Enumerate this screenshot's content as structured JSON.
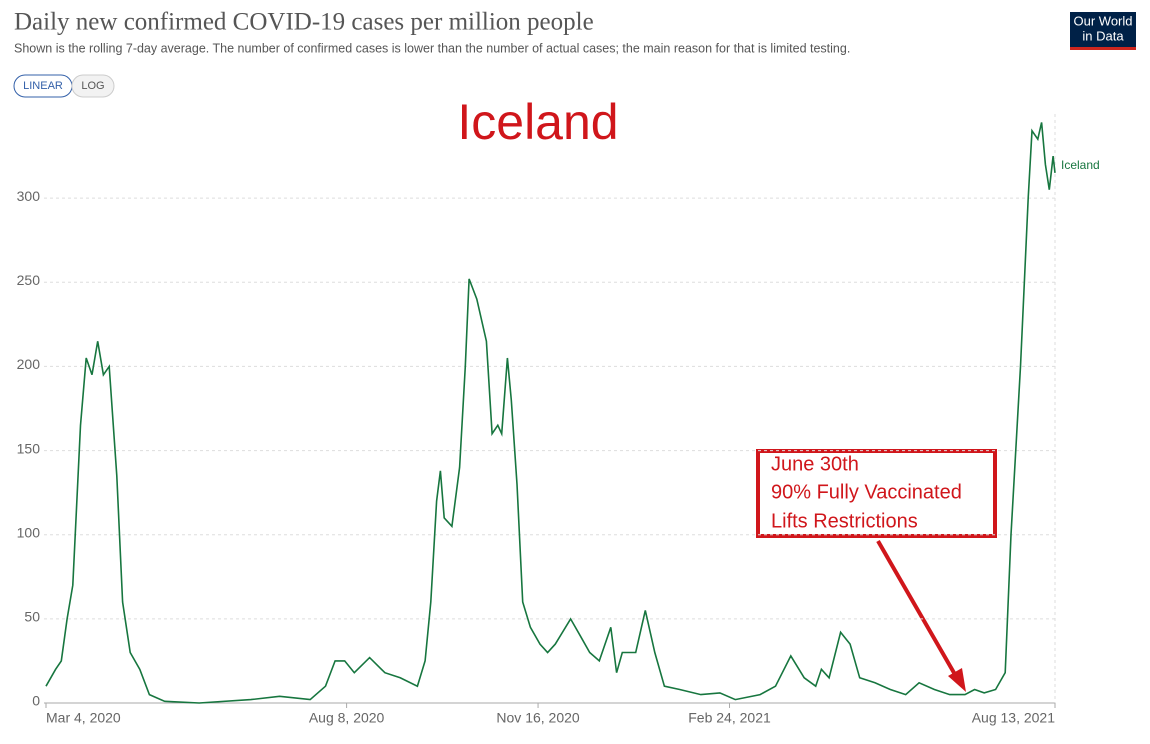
{
  "controls": [
    "LINEAR",
    "LOG"
  ],
  "logo": [
    "Our World",
    "in Data"
  ],
  "chart_data": {
    "type": "line",
    "title": "Daily new confirmed COVID-19 cases per million people",
    "subtitle": "Shown is the rolling 7-day average. The number of confirmed cases is lower than the number of actual cases; the main reason for that is limited testing.",
    "heading": "Iceland",
    "annotation": [
      "June 30th",
      "90% Fully Vaccinated",
      "Lifts Restrictions"
    ],
    "x": [
      "2020-03-04",
      "2020-03-09",
      "2020-03-12",
      "2020-03-15",
      "2020-03-18",
      "2020-03-22",
      "2020-03-25",
      "2020-03-28",
      "2020-03-31",
      "2020-04-03",
      "2020-04-06",
      "2020-04-10",
      "2020-04-13",
      "2020-04-17",
      "2020-04-22",
      "2020-04-27",
      "2020-05-05",
      "2020-05-23",
      "2020-06-19",
      "2020-07-04",
      "2020-07-20",
      "2020-07-28",
      "2020-08-02",
      "2020-08-07",
      "2020-08-12",
      "2020-08-20",
      "2020-08-28",
      "2020-09-05",
      "2020-09-14",
      "2020-09-18",
      "2020-09-21",
      "2020-09-24",
      "2020-09-26",
      "2020-09-28",
      "2020-10-02",
      "2020-10-06",
      "2020-10-09",
      "2020-10-11",
      "2020-10-15",
      "2020-10-20",
      "2020-10-23",
      "2020-10-26",
      "2020-10-28",
      "2020-10-31",
      "2020-11-02",
      "2020-11-05",
      "2020-11-08",
      "2020-11-12",
      "2020-11-17",
      "2020-11-21",
      "2020-11-25",
      "2020-12-03",
      "2020-12-08",
      "2020-12-13",
      "2020-12-18",
      "2020-12-24",
      "2020-12-27",
      "2020-12-30",
      "2021-01-06",
      "2021-01-11",
      "2021-01-16",
      "2021-01-21",
      "2021-01-29",
      "2021-02-09",
      "2021-02-19",
      "2021-02-27",
      "2021-03-12",
      "2021-03-20",
      "2021-03-28",
      "2021-04-04",
      "2021-04-10",
      "2021-04-13",
      "2021-04-17",
      "2021-04-23",
      "2021-04-28",
      "2021-05-03",
      "2021-05-11",
      "2021-05-19",
      "2021-05-27",
      "2021-06-03",
      "2021-06-11",
      "2021-06-19",
      "2021-06-27",
      "2021-07-02",
      "2021-07-07",
      "2021-07-13",
      "2021-07-18",
      "2021-07-21",
      "2021-07-26",
      "2021-07-30",
      "2021-08-01",
      "2021-08-04",
      "2021-08-06",
      "2021-08-08",
      "2021-08-10",
      "2021-08-12",
      "2021-08-13"
    ],
    "series": [
      {
        "name": "Iceland",
        "color": "#17763f",
        "values": [
          10,
          20,
          25,
          50,
          70,
          165,
          205,
          195,
          215,
          195,
          200,
          135,
          60,
          30,
          20,
          5,
          1,
          0,
          2,
          4,
          2,
          10,
          25,
          25,
          18,
          27,
          18,
          15,
          10,
          25,
          60,
          120,
          138,
          110,
          105,
          140,
          200,
          252,
          240,
          215,
          160,
          165,
          160,
          205,
          180,
          130,
          60,
          45,
          35,
          30,
          35,
          50,
          40,
          30,
          25,
          45,
          18,
          30,
          30,
          55,
          30,
          10,
          8,
          5,
          6,
          2,
          5,
          10,
          28,
          15,
          10,
          20,
          15,
          42,
          35,
          15,
          12,
          8,
          5,
          12,
          8,
          5,
          5,
          8,
          6,
          8,
          18,
          100,
          200,
          300,
          340,
          335,
          345,
          320,
          305,
          325,
          315
        ]
      }
    ],
    "xlim": [
      "2020-03-04",
      "2021-08-13"
    ],
    "xticks": [
      {
        "value": "2020-03-04",
        "label": "Mar 4, 2020"
      },
      {
        "value": "2020-08-08",
        "label": "Aug 8, 2020"
      },
      {
        "value": "2020-11-16",
        "label": "Nov 16, 2020"
      },
      {
        "value": "2021-02-24",
        "label": "Feb 24, 2021"
      },
      {
        "value": "2021-08-13",
        "label": "Aug 13, 2021"
      }
    ],
    "ylim": [
      0,
      350
    ],
    "yticks": [
      0,
      50,
      100,
      150,
      200,
      250,
      300
    ],
    "grid": true
  }
}
